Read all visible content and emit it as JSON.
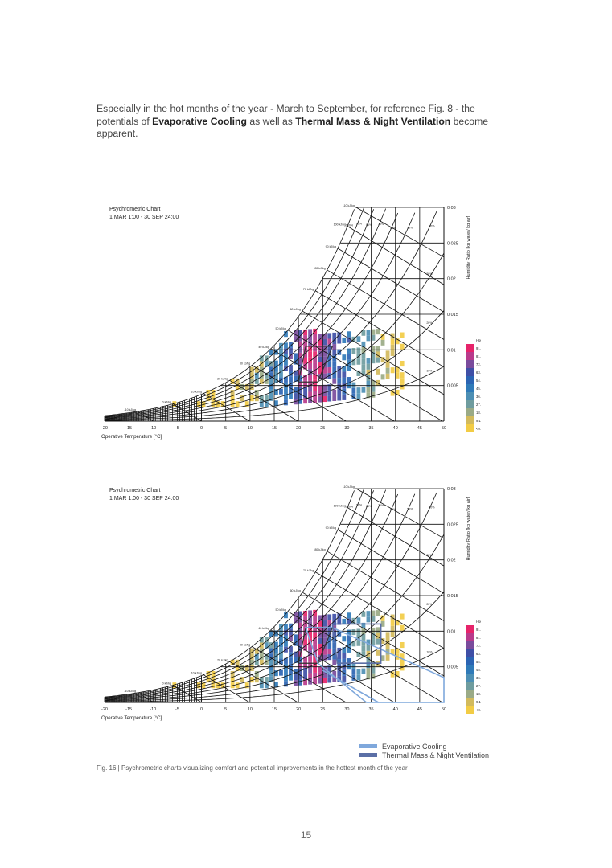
{
  "paragraph": {
    "part1": "Especially in the hot months of the year  - March to September, for reference Fig. 8 - the potentials of ",
    "bold1": "Evaporative Cooling",
    "part2": " as well as ",
    "bold2": "Thermal Mass & Night Ventilation",
    "part3": " become apparent."
  },
  "chart_data": [
    {
      "type": "heatmap",
      "title": "Psychrometric Chart",
      "subtitle": "1 MAR 1:00 - 30 SEP 24:00",
      "xlabel": "Operative Temperature [°C]",
      "ylabel": "Humidity Ratio [kg water/ kg air]",
      "xlim": [
        -20,
        50
      ],
      "ylim": [
        0,
        0.03
      ],
      "x_ticks": [
        "-20",
        "-15",
        "-10",
        "-5",
        "0",
        "5",
        "10",
        "15",
        "20",
        "25",
        "30",
        "35",
        "40",
        "45",
        "50"
      ],
      "y_ticks": [
        "0.005",
        "0.01",
        "0.015",
        "0.02",
        "0.025",
        "0.03"
      ],
      "rh_labels": [
        "100%",
        "90%",
        "80%",
        "70%",
        "60%",
        "50%",
        "40%",
        "30%",
        "20%",
        "10%"
      ],
      "enthalpy_labels": [
        "-10 kJ/kg",
        "0 kJ/kg",
        "10 kJ/kg",
        "20 kJ/kg",
        "30 kJ/kg",
        "40 kJ/kg",
        "50 kJ/kg",
        "60 kJ/kg",
        "70 kJ/kg",
        "80 kJ/kg",
        "90 kJ/kg",
        "100 kJ/kg",
        "110 kJ/kg"
      ],
      "colorbar": {
        "title": "Hours",
        "labels": [
          "91.00<",
          "81.90",
          "72.80",
          "63.70",
          "54.60",
          "45.50",
          "36.40",
          "27.30",
          "18.20",
          "9.10",
          "<0.00"
        ],
        "colors": [
          "#e6246a",
          "#b83a8b",
          "#7a4b9c",
          "#3f4fa6",
          "#2b64b3",
          "#2f7ab8",
          "#4d8fb4",
          "#6f9c9e",
          "#9aaa86",
          "#d2ba5c",
          "#f2cc45"
        ]
      },
      "overlays": [
        "comfort-zone"
      ]
    },
    {
      "type": "heatmap",
      "title": "Psychrometric Chart",
      "subtitle": "1 MAR 1:00 - 30 SEP 24:00",
      "xlabel": "Operative Temperature [°C]",
      "ylabel": "Humidity Ratio [kg water/ kg air]",
      "xlim": [
        -20,
        50
      ],
      "ylim": [
        0,
        0.03
      ],
      "x_ticks": [
        "-20",
        "-15",
        "-10",
        "-5",
        "0",
        "5",
        "10",
        "15",
        "20",
        "25",
        "30",
        "35",
        "40",
        "45",
        "50"
      ],
      "y_ticks": [
        "0.005",
        "0.01",
        "0.015",
        "0.02",
        "0.025",
        "0.03"
      ],
      "rh_labels": [
        "100%",
        "90%",
        "80%",
        "70%",
        "60%",
        "50%",
        "40%",
        "30%",
        "20%",
        "10%"
      ],
      "enthalpy_labels": [
        "-10 kJ/kg",
        "0 kJ/kg",
        "10 kJ/kg",
        "20 kJ/kg",
        "30 kJ/kg",
        "40 kJ/kg",
        "50 kJ/kg",
        "60 kJ/kg",
        "70 kJ/kg",
        "80 kJ/kg",
        "90 kJ/kg",
        "100 kJ/kg",
        "110 kJ/kg"
      ],
      "colorbar": {
        "title": "Hours",
        "labels": [
          "91.00<",
          "81.90",
          "72.80",
          "63.70",
          "54.60",
          "45.50",
          "36.40",
          "27.30",
          "18.20",
          "9.10",
          "<0.00"
        ],
        "colors": [
          "#e6246a",
          "#b83a8b",
          "#7a4b9c",
          "#3f4fa6",
          "#2b64b3",
          "#2f7ab8",
          "#4d8fb4",
          "#6f9c9e",
          "#9aaa86",
          "#d2ba5c",
          "#f2cc45"
        ]
      },
      "overlays": [
        "comfort-zone",
        "evaporative-cooling",
        "thermal-mass-night-ventilation"
      ]
    }
  ],
  "legend": {
    "items": [
      {
        "label": "Evaporative Cooling",
        "color": "#7fa8dc"
      },
      {
        "label": "Thermal Mass & Night Ventilation",
        "color": "#5b6fa6"
      }
    ]
  },
  "caption": "Fig. 16 | Psychrometric charts visualizing comfort and potential improvements in the hottest month of the year",
  "page_number": "15"
}
